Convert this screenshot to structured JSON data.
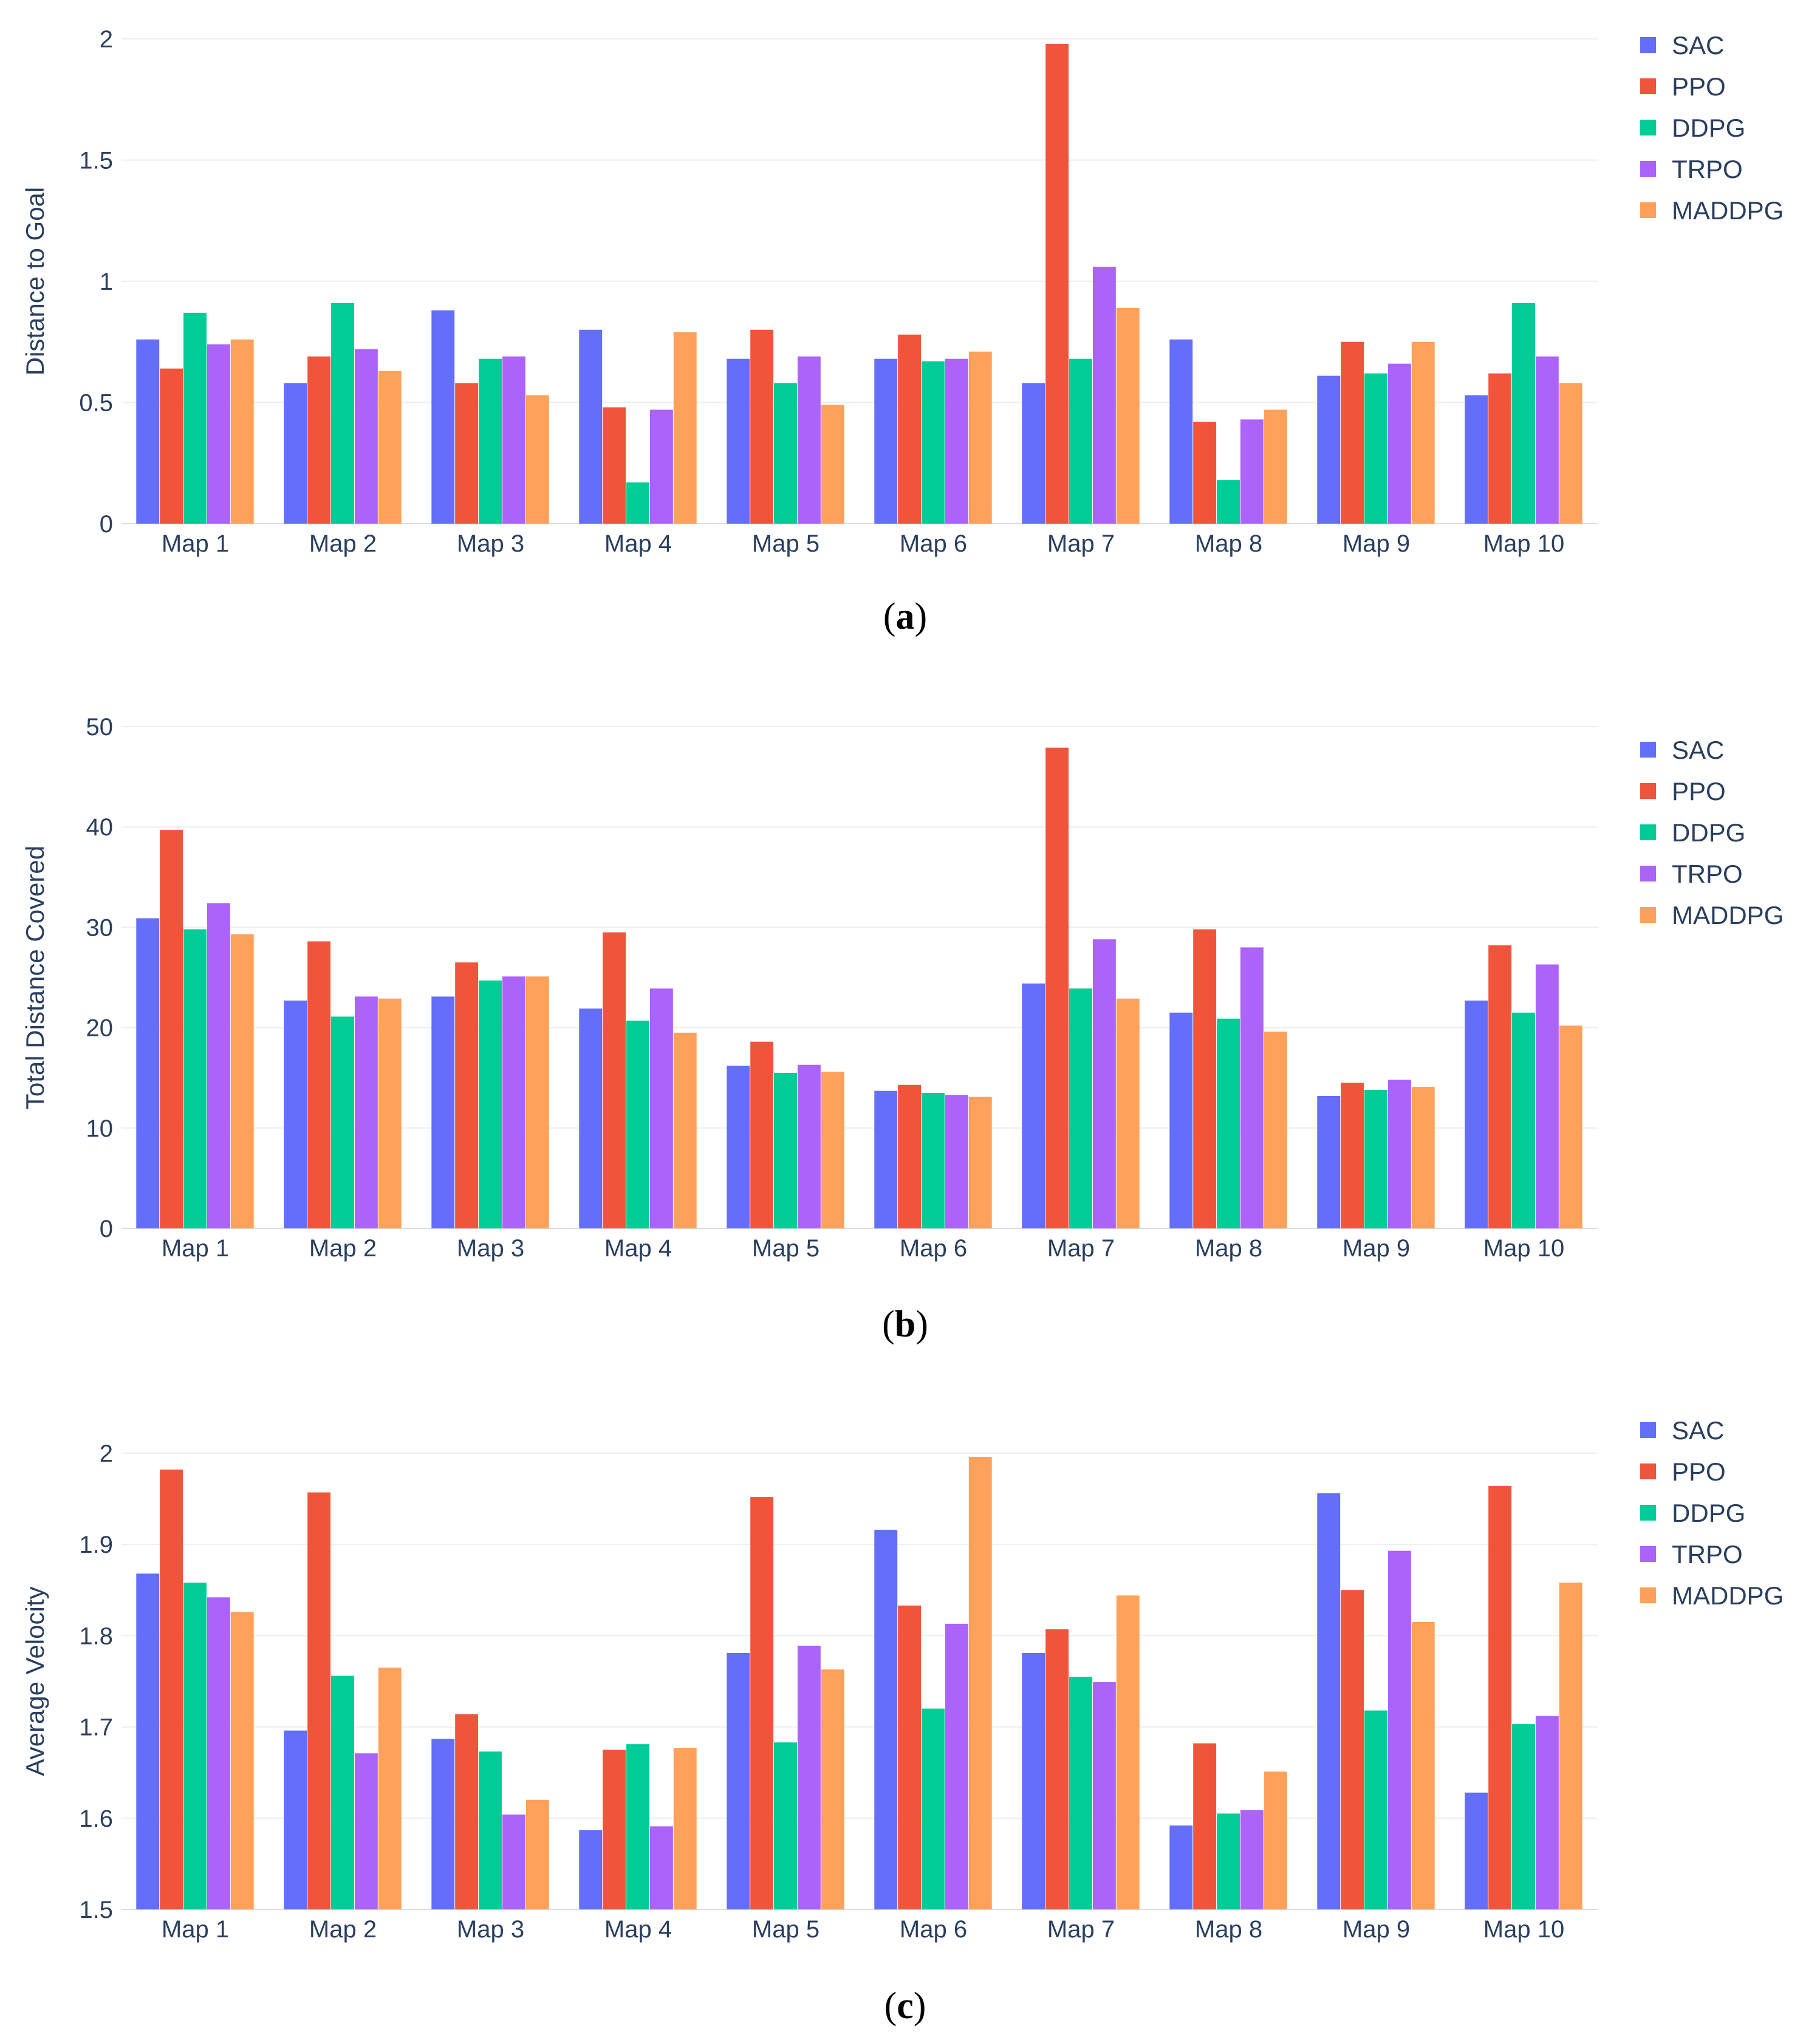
{
  "colors": {
    "SAC": "#636efa",
    "PPO": "#ef553b",
    "DDPG": "#00cc96",
    "TRPO": "#ab63fa",
    "MADDPG": "#ffa15a"
  },
  "chart_data": [
    {
      "type": "bar",
      "caption": "a",
      "title": "",
      "xlabel": "",
      "ylabel": "Distance to Goal",
      "ylim": [
        0,
        2
      ],
      "yticks": [
        0,
        0.5,
        1,
        1.5,
        2
      ],
      "ytick_labels": [
        "0",
        "0.5",
        "1",
        "1.5",
        "2"
      ],
      "legend_position": "right",
      "categories": [
        "Map 1",
        "Map 2",
        "Map 3",
        "Map 4",
        "Map 5",
        "Map 6",
        "Map 7",
        "Map 8",
        "Map 9",
        "Map 10"
      ],
      "series": [
        {
          "name": "SAC",
          "values": [
            0.76,
            0.58,
            0.88,
            0.8,
            0.68,
            0.68,
            0.58,
            0.76,
            0.61,
            0.53
          ]
        },
        {
          "name": "PPO",
          "values": [
            0.64,
            0.69,
            0.58,
            0.48,
            0.8,
            0.78,
            1.98,
            0.42,
            0.75,
            0.62
          ]
        },
        {
          "name": "DDPG",
          "values": [
            0.87,
            0.91,
            0.68,
            0.17,
            0.58,
            0.67,
            0.68,
            0.18,
            0.62,
            0.91
          ]
        },
        {
          "name": "TRPO",
          "values": [
            0.74,
            0.72,
            0.69,
            0.47,
            0.69,
            0.68,
            1.06,
            0.43,
            0.66,
            0.69
          ]
        },
        {
          "name": "MADDPG",
          "values": [
            0.76,
            0.63,
            0.53,
            0.79,
            0.49,
            0.71,
            0.89,
            0.47,
            0.75,
            0.58
          ]
        }
      ]
    },
    {
      "type": "bar",
      "caption": "b",
      "title": "",
      "xlabel": "",
      "ylabel": "Total Distance Covered",
      "ylim": [
        0,
        50
      ],
      "yticks": [
        0,
        10,
        20,
        30,
        40,
        50
      ],
      "ytick_labels": [
        "0",
        "10",
        "20",
        "30",
        "40",
        "50"
      ],
      "legend_position": "right",
      "categories": [
        "Map 1",
        "Map 2",
        "Map 3",
        "Map 4",
        "Map 5",
        "Map 6",
        "Map 7",
        "Map 8",
        "Map 9",
        "Map 10"
      ],
      "series": [
        {
          "name": "SAC",
          "values": [
            30.9,
            22.7,
            23.1,
            21.9,
            16.2,
            13.7,
            24.4,
            21.5,
            13.2,
            22.7
          ]
        },
        {
          "name": "PPO",
          "values": [
            39.7,
            28.6,
            26.5,
            29.5,
            18.6,
            14.3,
            47.9,
            29.8,
            14.5,
            28.2
          ]
        },
        {
          "name": "DDPG",
          "values": [
            29.8,
            21.1,
            24.7,
            20.7,
            15.5,
            13.5,
            23.9,
            20.9,
            13.8,
            21.5
          ]
        },
        {
          "name": "TRPO",
          "values": [
            32.4,
            23.1,
            25.1,
            23.9,
            16.3,
            13.3,
            28.8,
            28.0,
            14.8,
            26.3
          ]
        },
        {
          "name": "MADDPG",
          "values": [
            29.3,
            22.9,
            25.1,
            19.5,
            15.6,
            13.1,
            22.9,
            19.6,
            14.1,
            20.2
          ]
        }
      ]
    },
    {
      "type": "bar",
      "caption": "c",
      "title": "",
      "xlabel": "",
      "ylabel": "Average Velocity",
      "ylim": [
        1.5,
        2.0
      ],
      "yticks": [
        1.5,
        1.6,
        1.7,
        1.8,
        1.9,
        2.0
      ],
      "ytick_labels": [
        "1.5",
        "1.6",
        "1.7",
        "1.8",
        "1.9",
        "2"
      ],
      "legend_position": "right",
      "categories": [
        "Map 1",
        "Map 2",
        "Map 3",
        "Map 4",
        "Map 5",
        "Map 6",
        "Map 7",
        "Map 8",
        "Map 9",
        "Map 10"
      ],
      "series": [
        {
          "name": "SAC",
          "values": [
            1.868,
            1.696,
            1.687,
            1.587,
            1.781,
            1.916,
            1.781,
            1.592,
            1.956,
            1.628
          ]
        },
        {
          "name": "PPO",
          "values": [
            1.982,
            1.957,
            1.714,
            1.675,
            1.952,
            1.833,
            1.807,
            1.682,
            1.85,
            1.964
          ]
        },
        {
          "name": "DDPG",
          "values": [
            1.858,
            1.756,
            1.673,
            1.681,
            1.683,
            1.72,
            1.755,
            1.605,
            1.718,
            1.703
          ]
        },
        {
          "name": "TRPO",
          "values": [
            1.842,
            1.671,
            1.604,
            1.591,
            1.789,
            1.813,
            1.749,
            1.609,
            1.893,
            1.712
          ]
        },
        {
          "name": "MADDPG",
          "values": [
            1.826,
            1.765,
            1.62,
            1.677,
            1.763,
            1.996,
            1.844,
            1.651,
            1.815,
            1.858
          ]
        }
      ]
    }
  ]
}
